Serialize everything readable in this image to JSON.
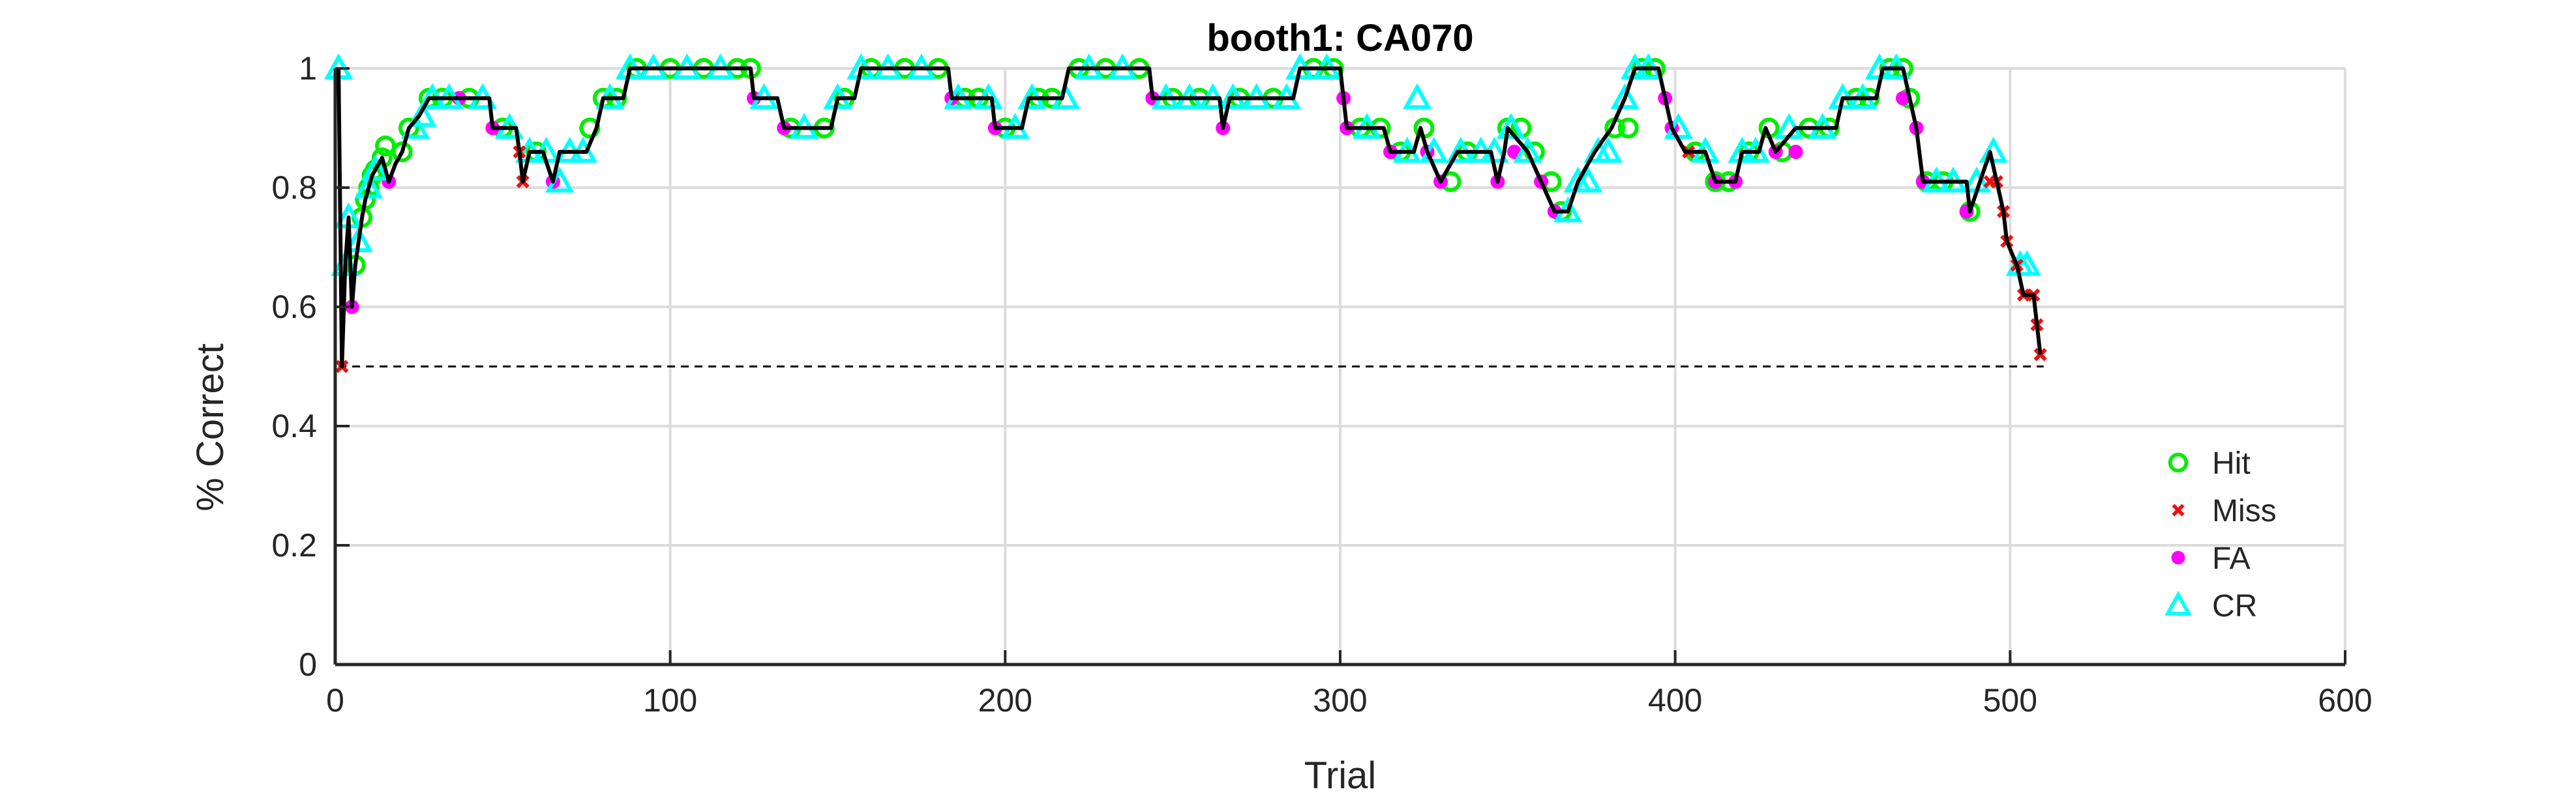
{
  "chart_data": {
    "type": "line",
    "title": "booth1: CA070",
    "xlabel": "Trial",
    "ylabel": "% Correct",
    "xlim": [
      0,
      600
    ],
    "ylim": [
      0,
      1
    ],
    "xticks": [
      0,
      100,
      200,
      300,
      400,
      500,
      600
    ],
    "xtick_labels": [
      "0",
      "100",
      "200",
      "300",
      "400",
      "500",
      "600"
    ],
    "yticks": [
      0,
      0.2,
      0.4,
      0.6,
      0.8,
      1
    ],
    "ytick_labels": [
      "0",
      "0.2",
      "0.4",
      "0.6",
      "0.8",
      "1"
    ],
    "grid": true,
    "legend_position": "bottom-right",
    "chance_line": {
      "y": 0.5,
      "x_start": 1,
      "x_end": 510,
      "style": "dashed"
    },
    "colors": {
      "Hit": "#00ee00",
      "Miss": "#ee1111",
      "FA": "#ff00ff",
      "CR": "#00ffff",
      "line": "#000000"
    },
    "legend": [
      {
        "name": "Hit",
        "marker": "circle"
      },
      {
        "name": "Miss",
        "marker": "x"
      },
      {
        "name": "FA",
        "marker": "dot"
      },
      {
        "name": "CR",
        "marker": "triangle"
      }
    ],
    "performance_curve": [
      [
        1,
        1.0
      ],
      [
        2,
        0.5
      ],
      [
        3,
        0.67
      ],
      [
        4,
        0.75
      ],
      [
        5,
        0.6
      ],
      [
        6,
        0.67
      ],
      [
        7,
        0.71
      ],
      [
        8,
        0.75
      ],
      [
        9,
        0.78
      ],
      [
        10,
        0.8
      ],
      [
        11,
        0.82
      ],
      [
        12,
        0.83
      ],
      [
        14,
        0.85
      ],
      [
        16,
        0.81
      ],
      [
        18,
        0.84
      ],
      [
        20,
        0.86
      ],
      [
        22,
        0.9
      ],
      [
        25,
        0.92
      ],
      [
        28,
        0.95
      ],
      [
        30,
        0.95
      ],
      [
        36,
        0.95
      ],
      [
        40,
        0.95
      ],
      [
        46,
        0.95
      ],
      [
        47,
        0.9
      ],
      [
        50,
        0.9
      ],
      [
        54,
        0.9
      ],
      [
        55,
        0.86
      ],
      [
        56,
        0.81
      ],
      [
        58,
        0.86
      ],
      [
        62,
        0.86
      ],
      [
        65,
        0.81
      ],
      [
        67,
        0.86
      ],
      [
        75,
        0.86
      ],
      [
        78,
        0.9
      ],
      [
        80,
        0.95
      ],
      [
        86,
        0.95
      ],
      [
        88,
        1.0
      ],
      [
        124,
        1.0
      ],
      [
        125,
        0.95
      ],
      [
        132,
        0.95
      ],
      [
        134,
        0.9
      ],
      [
        148,
        0.9
      ],
      [
        150,
        0.95
      ],
      [
        155,
        0.95
      ],
      [
        157,
        1.0
      ],
      [
        183,
        1.0
      ],
      [
        184,
        0.95
      ],
      [
        196,
        0.95
      ],
      [
        197,
        0.9
      ],
      [
        205,
        0.9
      ],
      [
        207,
        0.95
      ],
      [
        217,
        0.95
      ],
      [
        219,
        1.0
      ],
      [
        243,
        1.0
      ],
      [
        244,
        0.95
      ],
      [
        264,
        0.95
      ],
      [
        265,
        0.9
      ],
      [
        267,
        0.95
      ],
      [
        286,
        0.95
      ],
      [
        288,
        1.0
      ],
      [
        300,
        1.0
      ],
      [
        301,
        0.95
      ],
      [
        302,
        0.9
      ],
      [
        313,
        0.9
      ],
      [
        315,
        0.86
      ],
      [
        322,
        0.86
      ],
      [
        324,
        0.9
      ],
      [
        326,
        0.86
      ],
      [
        330,
        0.81
      ],
      [
        335,
        0.86
      ],
      [
        345,
        0.86
      ],
      [
        347,
        0.81
      ],
      [
        349,
        0.86
      ],
      [
        350,
        0.9
      ],
      [
        356,
        0.86
      ],
      [
        360,
        0.81
      ],
      [
        364,
        0.76
      ],
      [
        368,
        0.76
      ],
      [
        371,
        0.81
      ],
      [
        376,
        0.86
      ],
      [
        381,
        0.9
      ],
      [
        385,
        0.95
      ],
      [
        388,
        1.0
      ],
      [
        395,
        1.0
      ],
      [
        397,
        0.95
      ],
      [
        399,
        0.9
      ],
      [
        403,
        0.86
      ],
      [
        409,
        0.86
      ],
      [
        412,
        0.81
      ],
      [
        418,
        0.81
      ],
      [
        420,
        0.86
      ],
      [
        425,
        0.86
      ],
      [
        427,
        0.9
      ],
      [
        430,
        0.86
      ],
      [
        436,
        0.9
      ],
      [
        448,
        0.9
      ],
      [
        450,
        0.95
      ],
      [
        460,
        0.95
      ],
      [
        462,
        1.0
      ],
      [
        468,
        1.0
      ],
      [
        470,
        0.95
      ],
      [
        472,
        0.9
      ],
      [
        474,
        0.81
      ],
      [
        487,
        0.81
      ],
      [
        488,
        0.76
      ],
      [
        491,
        0.81
      ],
      [
        494,
        0.86
      ],
      [
        496,
        0.81
      ],
      [
        498,
        0.76
      ],
      [
        499,
        0.71
      ],
      [
        502,
        0.67
      ],
      [
        504,
        0.62
      ],
      [
        507,
        0.62
      ],
      [
        508,
        0.57
      ],
      [
        509,
        0.52
      ]
    ],
    "series": [
      {
        "name": "Hit",
        "points": [
          [
            6,
            0.67
          ],
          [
            8,
            0.75
          ],
          [
            9,
            0.78
          ],
          [
            10,
            0.8
          ],
          [
            11,
            0.82
          ],
          [
            12,
            0.83
          ],
          [
            14,
            0.85
          ],
          [
            15,
            0.87
          ],
          [
            20,
            0.86
          ],
          [
            22,
            0.9
          ],
          [
            28,
            0.95
          ],
          [
            32,
            0.95
          ],
          [
            40,
            0.95
          ],
          [
            50,
            0.9
          ],
          [
            60,
            0.86
          ],
          [
            76,
            0.9
          ],
          [
            80,
            0.95
          ],
          [
            84,
            0.95
          ],
          [
            90,
            1.0
          ],
          [
            100,
            1.0
          ],
          [
            110,
            1.0
          ],
          [
            120,
            1.0
          ],
          [
            124,
            1.0
          ],
          [
            136,
            0.9
          ],
          [
            146,
            0.9
          ],
          [
            152,
            0.95
          ],
          [
            160,
            1.0
          ],
          [
            170,
            1.0
          ],
          [
            180,
            1.0
          ],
          [
            188,
            0.95
          ],
          [
            192,
            0.95
          ],
          [
            200,
            0.9
          ],
          [
            210,
            0.95
          ],
          [
            214,
            0.95
          ],
          [
            222,
            1.0
          ],
          [
            230,
            1.0
          ],
          [
            240,
            1.0
          ],
          [
            250,
            0.95
          ],
          [
            258,
            0.95
          ],
          [
            270,
            0.95
          ],
          [
            280,
            0.95
          ],
          [
            292,
            1.0
          ],
          [
            298,
            1.0
          ],
          [
            306,
            0.9
          ],
          [
            312,
            0.9
          ],
          [
            318,
            0.86
          ],
          [
            325,
            0.9
          ],
          [
            333,
            0.81
          ],
          [
            338,
            0.86
          ],
          [
            350,
            0.9
          ],
          [
            354,
            0.9
          ],
          [
            358,
            0.86
          ],
          [
            363,
            0.81
          ],
          [
            366,
            0.76
          ],
          [
            382,
            0.9
          ],
          [
            386,
            0.9
          ],
          [
            390,
            1.0
          ],
          [
            394,
            1.0
          ],
          [
            406,
            0.86
          ],
          [
            412,
            0.81
          ],
          [
            416,
            0.81
          ],
          [
            422,
            0.86
          ],
          [
            428,
            0.9
          ],
          [
            432,
            0.86
          ],
          [
            440,
            0.9
          ],
          [
            446,
            0.9
          ],
          [
            454,
            0.95
          ],
          [
            458,
            0.95
          ],
          [
            464,
            1.0
          ],
          [
            468,
            1.0
          ],
          [
            470,
            0.95
          ],
          [
            475,
            0.81
          ],
          [
            480,
            0.81
          ],
          [
            488,
            0.76
          ]
        ]
      },
      {
        "name": "Miss",
        "points": [
          [
            2,
            0.5
          ],
          [
            55,
            0.86
          ],
          [
            56,
            0.81
          ],
          [
            404,
            0.86
          ],
          [
            494,
            0.81
          ],
          [
            496,
            0.81
          ],
          [
            498,
            0.76
          ],
          [
            499,
            0.71
          ],
          [
            502,
            0.67
          ],
          [
            504,
            0.62
          ],
          [
            507,
            0.62
          ],
          [
            508,
            0.57
          ],
          [
            509,
            0.52
          ]
        ]
      },
      {
        "name": "FA",
        "points": [
          [
            5,
            0.6
          ],
          [
            16,
            0.81
          ],
          [
            37,
            0.95
          ],
          [
            47,
            0.9
          ],
          [
            65,
            0.81
          ],
          [
            125,
            0.95
          ],
          [
            134,
            0.9
          ],
          [
            184,
            0.95
          ],
          [
            197,
            0.9
          ],
          [
            244,
            0.95
          ],
          [
            265,
            0.9
          ],
          [
            301,
            0.95
          ],
          [
            302,
            0.9
          ],
          [
            315,
            0.86
          ],
          [
            326,
            0.86
          ],
          [
            330,
            0.81
          ],
          [
            347,
            0.81
          ],
          [
            352,
            0.86
          ],
          [
            360,
            0.81
          ],
          [
            364,
            0.76
          ],
          [
            397,
            0.95
          ],
          [
            399,
            0.9
          ],
          [
            412,
            0.81
          ],
          [
            418,
            0.81
          ],
          [
            430,
            0.86
          ],
          [
            436,
            0.86
          ],
          [
            468,
            0.95
          ],
          [
            472,
            0.9
          ],
          [
            474,
            0.81
          ],
          [
            487,
            0.76
          ]
        ]
      },
      {
        "name": "CR",
        "points": [
          [
            1,
            1.0
          ],
          [
            3,
            0.67
          ],
          [
            4,
            0.75
          ],
          [
            7,
            0.71
          ],
          [
            10,
            0.8
          ],
          [
            12,
            0.83
          ],
          [
            24,
            0.9
          ],
          [
            26,
            0.92
          ],
          [
            29,
            0.95
          ],
          [
            34,
            0.95
          ],
          [
            44,
            0.95
          ],
          [
            52,
            0.9
          ],
          [
            58,
            0.86
          ],
          [
            63,
            0.86
          ],
          [
            67,
            0.81
          ],
          [
            70,
            0.86
          ],
          [
            74,
            0.86
          ],
          [
            82,
            0.95
          ],
          [
            88,
            1.0
          ],
          [
            95,
            1.0
          ],
          [
            105,
            1.0
          ],
          [
            115,
            1.0
          ],
          [
            128,
            0.95
          ],
          [
            140,
            0.9
          ],
          [
            150,
            0.95
          ],
          [
            157,
            1.0
          ],
          [
            165,
            1.0
          ],
          [
            175,
            1.0
          ],
          [
            186,
            0.95
          ],
          [
            195,
            0.95
          ],
          [
            203,
            0.9
          ],
          [
            208,
            0.95
          ],
          [
            218,
            0.95
          ],
          [
            225,
            1.0
          ],
          [
            235,
            1.0
          ],
          [
            248,
            0.95
          ],
          [
            255,
            0.95
          ],
          [
            262,
            0.95
          ],
          [
            268,
            0.95
          ],
          [
            275,
            0.95
          ],
          [
            284,
            0.95
          ],
          [
            288,
            1.0
          ],
          [
            296,
            1.0
          ],
          [
            308,
            0.9
          ],
          [
            320,
            0.86
          ],
          [
            323,
            0.95
          ],
          [
            328,
            0.86
          ],
          [
            336,
            0.86
          ],
          [
            342,
            0.86
          ],
          [
            346,
            0.86
          ],
          [
            351,
            0.9
          ],
          [
            356,
            0.86
          ],
          [
            368,
            0.76
          ],
          [
            371,
            0.81
          ],
          [
            374,
            0.81
          ],
          [
            377,
            0.86
          ],
          [
            380,
            0.86
          ],
          [
            385,
            0.95
          ],
          [
            388,
            1.0
          ],
          [
            392,
            1.0
          ],
          [
            401,
            0.9
          ],
          [
            409,
            0.86
          ],
          [
            420,
            0.86
          ],
          [
            424,
            0.86
          ],
          [
            434,
            0.9
          ],
          [
            444,
            0.9
          ],
          [
            450,
            0.95
          ],
          [
            456,
            0.95
          ],
          [
            461,
            1.0
          ],
          [
            466,
            1.0
          ],
          [
            478,
            0.81
          ],
          [
            483,
            0.81
          ],
          [
            490,
            0.81
          ],
          [
            495,
            0.86
          ],
          [
            503,
            0.67
          ],
          [
            505,
            0.67
          ]
        ]
      }
    ]
  }
}
